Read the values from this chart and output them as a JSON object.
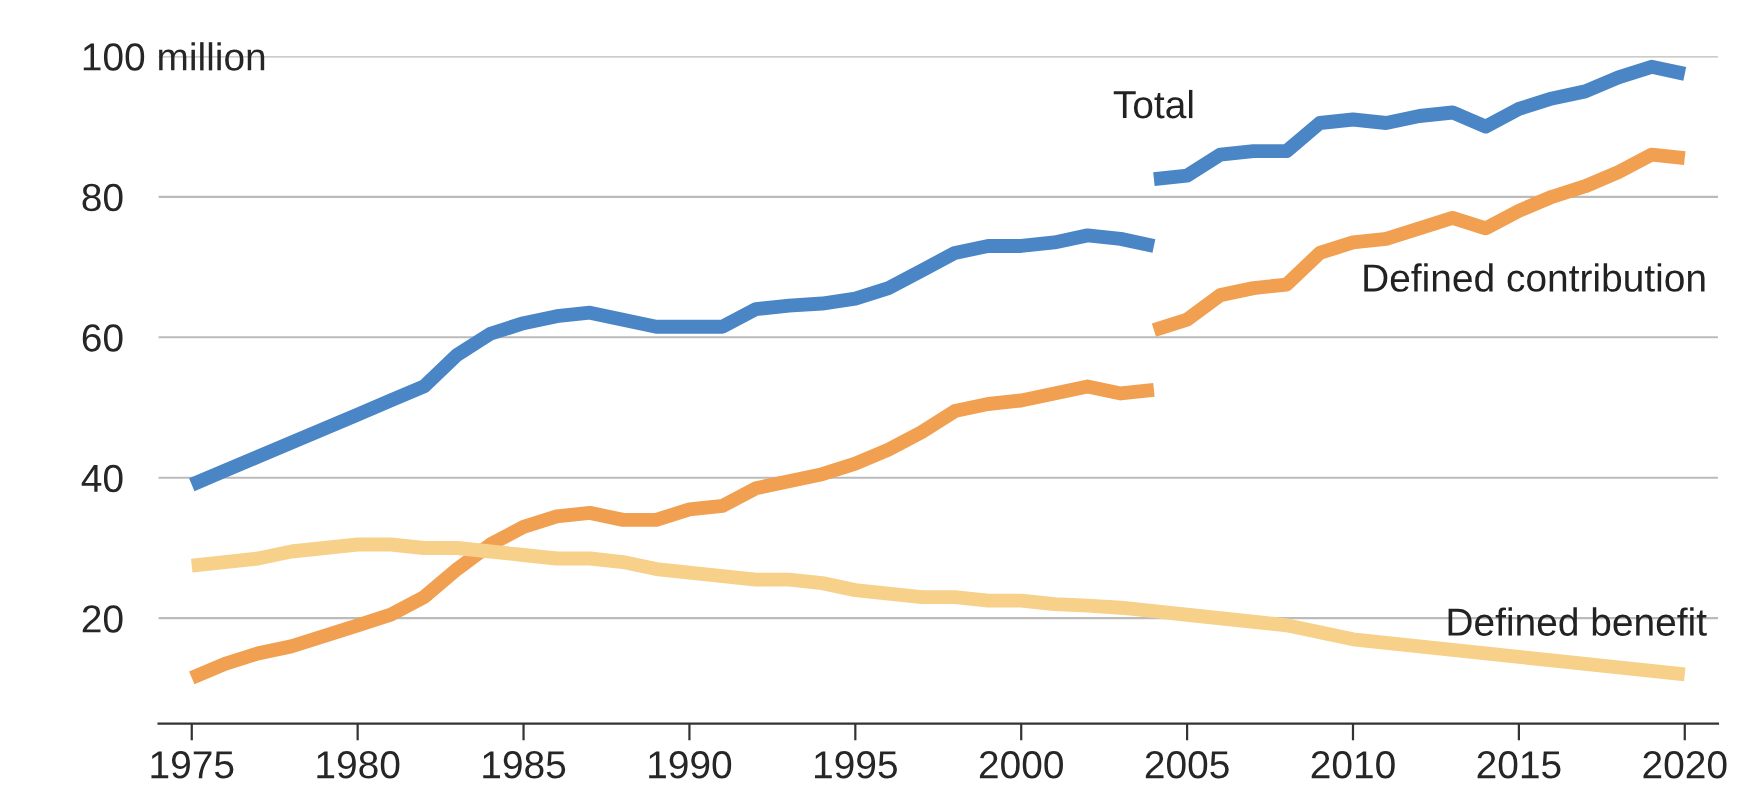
{
  "chart_data": {
    "type": "line",
    "xlim": [
      1974,
      2021
    ],
    "ylim": [
      5,
      100
    ],
    "xticks": [
      1975,
      1980,
      1985,
      1990,
      1995,
      2000,
      2005,
      2010,
      2015,
      2020
    ],
    "yticks": [
      20,
      40,
      60,
      80,
      {
        "value": 100,
        "label": "100 million"
      }
    ],
    "grid": "y",
    "legend": false,
    "marker": "none",
    "line_style": "solid",
    "series": [
      {
        "color": "#4a86c5",
        "x": [
          1975,
          1976,
          1977,
          1978,
          1979,
          1980,
          1981,
          1982,
          1983,
          1984,
          1985,
          1986,
          1987,
          1988,
          1989,
          1990,
          1991,
          1992,
          1993,
          1994,
          1995,
          1996,
          1997,
          1998,
          1999,
          2000,
          2001,
          2002,
          2003,
          2004
        ],
        "values": [
          39,
          41,
          43,
          45,
          47,
          49,
          51,
          53,
          57.5,
          60.5,
          62,
          63,
          63.5,
          62.5,
          61.5,
          61.5,
          61.5,
          64,
          64.5,
          64.8,
          65.5,
          67,
          69.5,
          72,
          73,
          73,
          73.5,
          74.5,
          74,
          73
        ]
      },
      {
        "name": "Total",
        "color": "#4a86c5",
        "x": [
          2004,
          2005,
          2006,
          2007,
          2008,
          2009,
          2010,
          2011,
          2012,
          2013,
          2014,
          2015,
          2016,
          2017,
          2018,
          2019,
          2020
        ],
        "values": [
          82.5,
          83,
          86,
          86.5,
          86.5,
          90.5,
          91,
          90.5,
          91.5,
          92,
          90,
          92.5,
          94,
          95,
          97,
          98.5,
          97.5
        ]
      },
      {
        "color": "#f0a050",
        "x": [
          1975,
          1976,
          1977,
          1978,
          1979,
          1980,
          1981,
          1982,
          1983,
          1984,
          1985,
          1986,
          1987,
          1988,
          1989,
          1990,
          1991,
          1992,
          1993,
          1994,
          1995,
          1996,
          1997,
          1998,
          1999,
          2000,
          2001,
          2002,
          2003,
          2004
        ],
        "values": [
          11.5,
          13.5,
          15,
          16,
          17.5,
          19,
          20.5,
          23,
          27,
          30.5,
          33,
          34.5,
          35,
          34,
          34,
          35.5,
          36,
          38.5,
          39.5,
          40.5,
          42,
          44,
          46.5,
          49.5,
          50.5,
          51,
          52,
          53,
          52,
          52.5
        ]
      },
      {
        "name": "Defined contribution",
        "color": "#f0a050",
        "x": [
          2004,
          2005,
          2006,
          2007,
          2008,
          2009,
          2010,
          2011,
          2012,
          2013,
          2014,
          2015,
          2016,
          2017,
          2018,
          2019,
          2020
        ],
        "values": [
          61,
          62.5,
          66,
          67,
          67.5,
          72,
          73.5,
          74,
          75.5,
          77,
          75.5,
          78,
          80,
          81.5,
          83.5,
          86,
          85.5
        ]
      },
      {
        "name": "Defined benefit",
        "color": "#f7d08a",
        "x": [
          1975,
          1976,
          1977,
          1978,
          1979,
          1980,
          1981,
          1982,
          1983,
          1984,
          1985,
          1986,
          1987,
          1988,
          1989,
          1990,
          1991,
          1992,
          1993,
          1994,
          1995,
          1996,
          1997,
          1998,
          1999,
          2000,
          2001,
          2002,
          2003,
          2004,
          2005,
          2006,
          2007,
          2008,
          2009,
          2010,
          2011,
          2012,
          2013,
          2014,
          2015,
          2016,
          2017,
          2018,
          2019,
          2020
        ],
        "values": [
          27.5,
          28,
          28.5,
          29.5,
          30,
          30.5,
          30.5,
          30,
          30,
          29.5,
          29,
          28.5,
          28.5,
          28,
          27,
          26.5,
          26,
          25.5,
          25.5,
          25,
          24,
          23.5,
          23,
          23,
          22.5,
          22.5,
          22,
          21.8,
          21.5,
          21,
          20.5,
          20,
          19.5,
          19,
          18,
          17,
          16.5,
          16,
          15.5,
          15,
          14.5,
          14,
          13.5,
          13,
          12.5,
          12
        ]
      }
    ]
  }
}
